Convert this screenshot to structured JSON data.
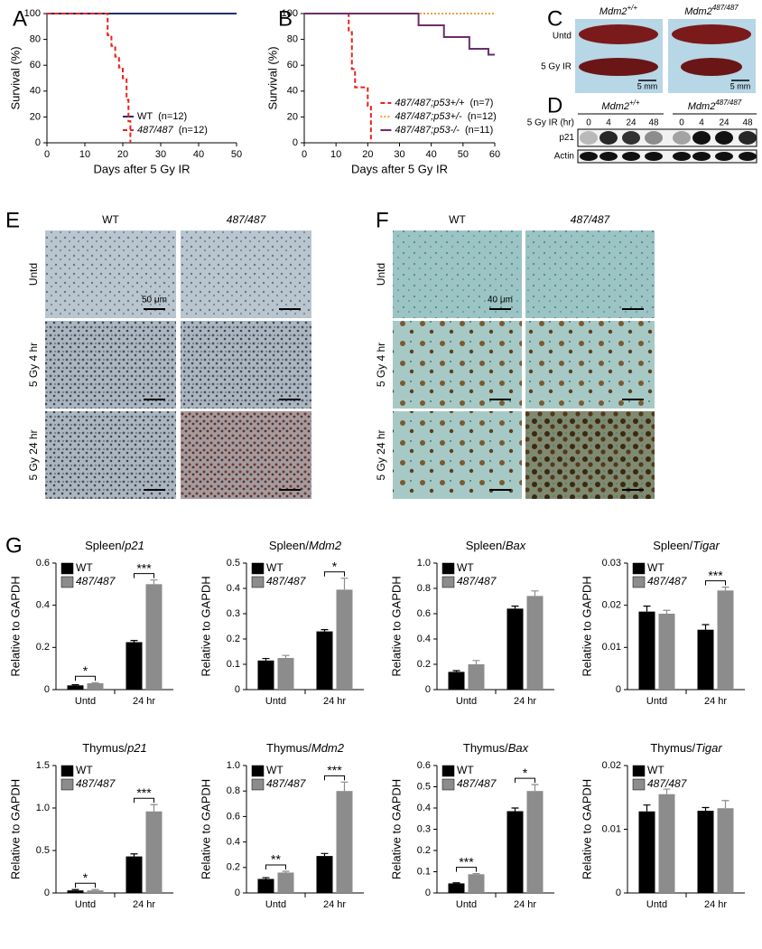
{
  "panel_labels": [
    "A",
    "B",
    "C",
    "D",
    "E",
    "F",
    "G"
  ],
  "chart_data": [
    {
      "type": "line",
      "step": true,
      "xlabel": "Days after 5 Gy IR",
      "ylabel": "Survival (%)",
      "xlim": [
        0,
        50
      ],
      "ylim": [
        0,
        100
      ],
      "xticks": [
        0,
        10,
        20,
        30,
        40,
        50
      ],
      "yticks": [
        0,
        20,
        40,
        60,
        80,
        100
      ],
      "legend": "lower right",
      "series": [
        {
          "name": "WT",
          "n_label": "(n=12)",
          "color": "#1f2d6e",
          "style": "solid",
          "italic": false,
          "x": [
            0,
            50
          ],
          "values": [
            100,
            100
          ]
        },
        {
          "name": "487/487",
          "n_label": "(n=12)",
          "color": "#e8221c",
          "style": "dashed",
          "italic": true,
          "x": [
            0,
            16,
            17,
            18,
            19,
            20,
            21,
            21.5,
            22
          ],
          "values": [
            100,
            83.3,
            75,
            66.7,
            58.3,
            50,
            33.3,
            16.7,
            0
          ]
        }
      ]
    },
    {
      "type": "line",
      "step": true,
      "xlabel": "Days after 5 Gy IR",
      "ylabel": "Survival (%)",
      "xlim": [
        0,
        60
      ],
      "ylim": [
        0,
        100
      ],
      "xticks": [
        0,
        10,
        20,
        30,
        40,
        50,
        60
      ],
      "yticks": [
        0,
        20,
        40,
        60,
        80,
        100
      ],
      "legend": "lower right",
      "series": [
        {
          "name": "487/487;p53+/+",
          "n_label": "(n=7)",
          "color": "#e8221c",
          "style": "dashed",
          "italic": true,
          "x": [
            0,
            14,
            15,
            16,
            20,
            21
          ],
          "values": [
            100,
            85.7,
            57.1,
            42.9,
            28.6,
            0
          ]
        },
        {
          "name": "487/487;p53+/-",
          "n_label": "(n=12)",
          "color": "#f0a040",
          "style": "dotted",
          "italic": true,
          "x": [
            0,
            60
          ],
          "values": [
            100,
            100
          ]
        },
        {
          "name": "487/487;p53-/-",
          "n_label": "(n=11)",
          "color": "#6b2d6b",
          "style": "solid",
          "italic": true,
          "x": [
            0,
            36,
            44,
            52,
            58,
            60
          ],
          "values": [
            100,
            90.9,
            81.8,
            72.7,
            68.2,
            68.2
          ]
        }
      ]
    },
    {
      "type": "bar",
      "title": "Spleen/",
      "title_gene": "p21",
      "ylabel": "Relative to GAPDH",
      "categories": [
        "Untd",
        "24 hr"
      ],
      "ylim": [
        0,
        0.6
      ],
      "yticks": [
        0,
        0.2,
        0.4,
        0.6
      ],
      "significance": [
        "*",
        "***"
      ],
      "series": [
        {
          "name": "WT",
          "color": "#000000",
          "italic": false,
          "values": [
            0.02,
            0.225
          ],
          "errors": [
            0.003,
            0.008
          ]
        },
        {
          "name": "487/487",
          "color": "#8c8c8c",
          "italic": true,
          "values": [
            0.03,
            0.5
          ],
          "errors": [
            0.003,
            0.02
          ]
        }
      ]
    },
    {
      "type": "bar",
      "title": "Spleen/",
      "title_gene": "Mdm2",
      "ylabel": "Relative to GAPDH",
      "categories": [
        "Untd",
        "24 hr"
      ],
      "ylim": [
        0,
        0.5
      ],
      "yticks": [
        0,
        0.1,
        0.2,
        0.3,
        0.4,
        0.5
      ],
      "significance": [
        null,
        "*"
      ],
      "series": [
        {
          "name": "WT",
          "color": "#000000",
          "italic": false,
          "values": [
            0.115,
            0.23
          ],
          "errors": [
            0.008,
            0.007
          ]
        },
        {
          "name": "487/487",
          "color": "#8c8c8c",
          "italic": true,
          "values": [
            0.125,
            0.395
          ],
          "errors": [
            0.01,
            0.045
          ]
        }
      ]
    },
    {
      "type": "bar",
      "title": "Spleen/",
      "title_gene": "Bax",
      "ylabel": "Relative to GAPDH",
      "categories": [
        "Untd",
        "24 hr"
      ],
      "ylim": [
        0,
        1
      ],
      "yticks": [
        0,
        0.2,
        0.4,
        0.6,
        0.8,
        {
          "value": 1,
          "label": "1.0"
        }
      ],
      "significance": [
        null,
        null
      ],
      "series": [
        {
          "name": "WT",
          "color": "#000000",
          "italic": false,
          "values": [
            0.14,
            0.64
          ],
          "errors": [
            0.01,
            0.02
          ]
        },
        {
          "name": "487/487",
          "color": "#8c8c8c",
          "italic": true,
          "values": [
            0.2,
            0.74
          ],
          "errors": [
            0.03,
            0.04
          ]
        }
      ]
    },
    {
      "type": "bar",
      "title": "Spleen/",
      "title_gene": "Tigar",
      "ylabel": "Relative to GAPDH",
      "categories": [
        "Untd",
        "24 hr"
      ],
      "ylim": [
        0,
        0.03
      ],
      "yticks": [
        0,
        0.01,
        0.02,
        0.03
      ],
      "significance": [
        null,
        "***"
      ],
      "series": [
        {
          "name": "WT",
          "color": "#000000",
          "italic": false,
          "values": [
            0.0185,
            0.0142
          ],
          "errors": [
            0.0013,
            0.0012
          ]
        },
        {
          "name": "487/487",
          "color": "#8c8c8c",
          "italic": true,
          "values": [
            0.018,
            0.0235
          ],
          "errors": [
            0.0008,
            0.0008
          ]
        }
      ]
    },
    {
      "type": "bar",
      "title": "Thymus/",
      "title_gene": "p21",
      "ylabel": "Relative to GAPDH",
      "categories": [
        "Untd",
        "24 hr"
      ],
      "ylim": [
        0,
        1.5
      ],
      "yticks": [
        0,
        0.5,
        {
          "value": 1,
          "label": "1.0"
        },
        1.5
      ],
      "significance": [
        "*",
        "***"
      ],
      "series": [
        {
          "name": "WT",
          "color": "#000000",
          "italic": false,
          "values": [
            0.03,
            0.43
          ],
          "errors": [
            0.01,
            0.03
          ]
        },
        {
          "name": "487/487",
          "color": "#8c8c8c",
          "italic": true,
          "values": [
            0.03,
            0.96
          ],
          "errors": [
            0.01,
            0.08
          ]
        }
      ]
    },
    {
      "type": "bar",
      "title": "Thymus/",
      "title_gene": "Mdm2",
      "ylabel": "Relative to GAPDH",
      "categories": [
        "Untd",
        "24 hr"
      ],
      "ylim": [
        0,
        1
      ],
      "yticks": [
        0,
        0.2,
        0.4,
        0.6,
        0.8,
        {
          "value": 1,
          "label": "1.0"
        }
      ],
      "significance": [
        "**",
        "***"
      ],
      "series": [
        {
          "name": "WT",
          "color": "#000000",
          "italic": false,
          "values": [
            0.11,
            0.29
          ],
          "errors": [
            0.01,
            0.02
          ]
        },
        {
          "name": "487/487",
          "color": "#8c8c8c",
          "italic": true,
          "values": [
            0.16,
            0.8
          ],
          "errors": [
            0.01,
            0.07
          ]
        }
      ]
    },
    {
      "type": "bar",
      "title": "Thymus/",
      "title_gene": "Bax",
      "ylabel": "Relative to GAPDH",
      "categories": [
        "Untd",
        "24 hr"
      ],
      "ylim": [
        0,
        0.6
      ],
      "yticks": [
        0,
        0.1,
        0.2,
        0.3,
        0.4,
        0.5,
        0.6
      ],
      "significance": [
        "***",
        "*"
      ],
      "series": [
        {
          "name": "WT",
          "color": "#000000",
          "italic": false,
          "values": [
            0.045,
            0.385
          ],
          "errors": [
            0.003,
            0.015
          ]
        },
        {
          "name": "487/487",
          "color": "#8c8c8c",
          "italic": true,
          "values": [
            0.088,
            0.48
          ],
          "errors": [
            0.003,
            0.03
          ]
        }
      ]
    },
    {
      "type": "bar",
      "title": "Thymus/",
      "title_gene": "Tigar",
      "ylabel": "Relative to GAPDH",
      "categories": [
        "Untd",
        "24 hr"
      ],
      "ylim": [
        0,
        0.02
      ],
      "yticks": [
        0,
        0.01,
        0.02
      ],
      "significance": [
        null,
        null
      ],
      "series": [
        {
          "name": "WT",
          "color": "#000000",
          "italic": false,
          "values": [
            0.0128,
            0.0129
          ],
          "errors": [
            0.001,
            0.0005
          ]
        },
        {
          "name": "487/487",
          "color": "#8c8c8c",
          "italic": true,
          "values": [
            0.0155,
            0.0133
          ],
          "errors": [
            0.0008,
            0.0012
          ]
        }
      ]
    }
  ],
  "panel_c": {
    "columns": [
      {
        "gene": "Mdm2",
        "genotype": "+/+"
      },
      {
        "gene": "Mdm2",
        "genotype": "487/487"
      }
    ],
    "rows": [
      "Untd",
      "5 Gy IR"
    ],
    "scale_bars": [
      "5 mm",
      "5 mm"
    ]
  },
  "panel_d": {
    "columns": [
      {
        "gene": "Mdm2",
        "genotype": "+/+"
      },
      {
        "gene": "Mdm2",
        "genotype": "487/487"
      }
    ],
    "time_label": "5 Gy IR (hr)",
    "times": [
      "0",
      "4",
      "24",
      "48",
      "0",
      "4",
      "24",
      "48"
    ],
    "rows": [
      "p21",
      "Actin"
    ]
  },
  "panel_e": {
    "columns": [
      "WT",
      "487/487"
    ],
    "rows": [
      "Untd",
      "5 Gy 4 hr",
      "5 Gy 24 hr"
    ],
    "scale_bar": "50 μm"
  },
  "panel_f": {
    "columns": [
      "WT",
      "487/487"
    ],
    "rows": [
      "Untd",
      "5 Gy 4 hr",
      "5 Gy 24 hr"
    ],
    "scale_bar": "40 μm"
  }
}
